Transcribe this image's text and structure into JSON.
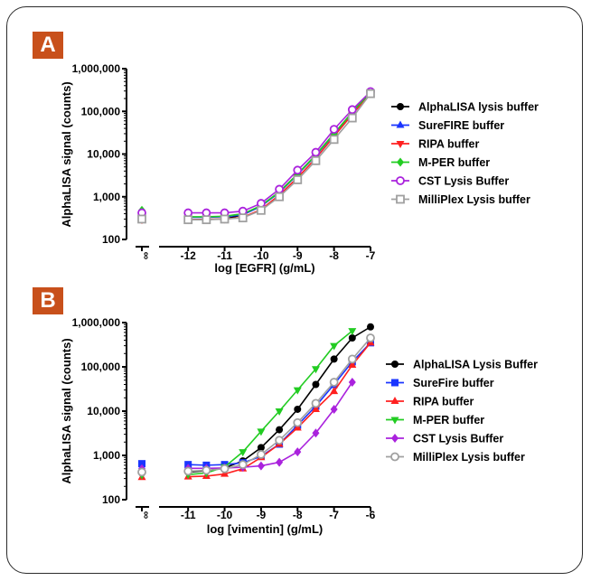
{
  "panels": [
    {
      "letter": "A"
    },
    {
      "letter": "B"
    }
  ],
  "colors": {
    "badge": "#c8501b",
    "black": "#000000",
    "blue": "#1a35ff",
    "red": "#ff2020",
    "green": "#22cc22",
    "purple": "#aa22dd",
    "grey": "#a0a0a0"
  },
  "chart_data": [
    {
      "type": "line",
      "ylabel": "AlphaLISA signal (counts)",
      "xlabel": "log [EGFR] (g/mL)",
      "y_scale": "log",
      "ylim": [
        100,
        1000000
      ],
      "yticks": [
        "100",
        "1,000",
        "10,000",
        "100,000",
        "1,000,000"
      ],
      "xlim": [
        -12.5,
        -7
      ],
      "xticks": [
        "-12",
        "-11",
        "-10",
        "-9",
        "-8",
        "-7"
      ],
      "zero_tick": "∞",
      "legend_position": "right",
      "series": [
        {
          "name": "AlphaLISA lysis buffer",
          "color": "#000000",
          "marker": "circle",
          "x": [
            "zero",
            -12,
            -11.5,
            -11,
            -10.5,
            -10,
            -9.5,
            -9,
            -8.5,
            -8,
            -7.5,
            -7
          ],
          "y": [
            300,
            290,
            295,
            300,
            380,
            600,
            1300,
            3400,
            9500,
            30000,
            95000,
            280000
          ]
        },
        {
          "name": "SureFIRE buffer",
          "color": "#1a35ff",
          "marker": "triangle-up",
          "x": [
            "zero",
            -12,
            -11.5,
            -11,
            -10.5,
            -10,
            -9.5,
            -9,
            -8.5,
            -8,
            -7.5,
            -7
          ],
          "y": [
            340,
            330,
            330,
            340,
            380,
            600,
            1250,
            3300,
            9200,
            29000,
            92000,
            280000
          ]
        },
        {
          "name": "RIPA buffer",
          "color": "#ff2020",
          "marker": "triangle-down",
          "x": [
            "zero",
            -12,
            -11.5,
            -11,
            -10.5,
            -10,
            -9.5,
            -9,
            -8.5,
            -8,
            -7.5,
            -7
          ],
          "y": [
            290,
            290,
            295,
            300,
            330,
            500,
            1100,
            2800,
            8000,
            26000,
            85000,
            260000
          ]
        },
        {
          "name": "M-PER buffer",
          "color": "#22cc22",
          "marker": "diamond",
          "x": [
            "zero",
            -12,
            -11.5,
            -11,
            -10.5,
            -10,
            -9.5,
            -9,
            -8.5,
            -8,
            -7.5,
            -7
          ],
          "y": [
            480,
            340,
            340,
            350,
            400,
            620,
            1300,
            3400,
            9500,
            30000,
            95000,
            280000
          ]
        },
        {
          "name": "CST Lysis Buffer",
          "color": "#aa22dd",
          "marker": "circle-open",
          "x": [
            "zero",
            -12,
            -11.5,
            -11,
            -10.5,
            -10,
            -9.5,
            -9,
            -8.5,
            -8,
            -7.5,
            -7
          ],
          "y": [
            420,
            420,
            420,
            420,
            460,
            700,
            1500,
            4200,
            11000,
            38000,
            110000,
            290000
          ]
        },
        {
          "name": "MilliPlex Lysis buffer",
          "color": "#a0a0a0",
          "marker": "square-open",
          "x": [
            "zero",
            -12,
            -11.5,
            -11,
            -10.5,
            -10,
            -9.5,
            -9,
            -8.5,
            -8,
            -7.5,
            -7
          ],
          "y": [
            300,
            290,
            290,
            300,
            320,
            480,
            1000,
            2500,
            7000,
            22000,
            70000,
            260000
          ]
        }
      ]
    },
    {
      "type": "line",
      "ylabel": "AlphaLISA signal (counts)",
      "xlabel": "log [vimentin] (g/mL)",
      "y_scale": "log",
      "ylim": [
        100,
        1000000
      ],
      "yticks": [
        "100",
        "1,000",
        "10,000",
        "100,000",
        "1,000,000"
      ],
      "xlim": [
        -11.5,
        -6
      ],
      "xticks": [
        "-11",
        "-10",
        "-9",
        "-8",
        "-7",
        "-6"
      ],
      "zero_tick": "∞",
      "legend_position": "right",
      "series": [
        {
          "name": "AlphaLISA Lysis Buffer",
          "color": "#000000",
          "marker": "circle",
          "x": [
            "zero",
            -11,
            -10.5,
            -10,
            -9.5,
            -9,
            -8.5,
            -8,
            -7.5,
            -7,
            -6.5,
            -6
          ],
          "y": [
            400,
            420,
            450,
            520,
            750,
            1500,
            3800,
            11000,
            40000,
            150000,
            450000,
            800000
          ]
        },
        {
          "name": "SureFire buffer",
          "color": "#1a35ff",
          "marker": "square",
          "x": [
            "zero",
            -11,
            -10.5,
            -10,
            -9.5,
            -9,
            -8.5,
            -8,
            -7.5,
            -7,
            -6.5,
            -6
          ],
          "y": [
            650,
            620,
            600,
            620,
            680,
            950,
            1800,
            4800,
            13000,
            40000,
            130000,
            350000
          ]
        },
        {
          "name": "RIPA buffer",
          "color": "#ff2020",
          "marker": "triangle-up",
          "x": [
            "zero",
            -11,
            -10.5,
            -10,
            -9.5,
            -9,
            -8.5,
            -8,
            -7.5,
            -7,
            -6.5,
            -6
          ],
          "y": [
            320,
            330,
            340,
            380,
            500,
            900,
            1800,
            4200,
            11000,
            28000,
            110000,
            350000
          ]
        },
        {
          "name": "M-PER buffer",
          "color": "#22cc22",
          "marker": "triangle-down",
          "x": [
            "zero",
            -11,
            -10.5,
            -10,
            -9.5,
            -9,
            -8.5,
            -8,
            -7.5,
            -7,
            -6.5
          ],
          "y": [
            360,
            370,
            400,
            550,
            1200,
            3500,
            10000,
            30000,
            90000,
            300000,
            650000
          ]
        },
        {
          "name": "CST Lysis Buffer",
          "color": "#aa22dd",
          "marker": "diamond",
          "x": [
            "zero",
            -11,
            -10.5,
            -10,
            -9.5,
            -9,
            -8.5,
            -8,
            -7.5,
            -7,
            -6.5
          ],
          "y": [
            500,
            510,
            510,
            520,
            540,
            580,
            700,
            1200,
            3200,
            11000,
            45000
          ]
        },
        {
          "name": "MilliPlex Lysis buffer",
          "color": "#a0a0a0",
          "marker": "circle-open",
          "x": [
            "zero",
            -11,
            -10.5,
            -10,
            -9.5,
            -9,
            -8.5,
            -8,
            -7.5,
            -7,
            -6.5,
            -6
          ],
          "y": [
            420,
            440,
            460,
            500,
            620,
            1050,
            2200,
            5500,
            15000,
            45000,
            150000,
            450000
          ]
        }
      ]
    }
  ]
}
